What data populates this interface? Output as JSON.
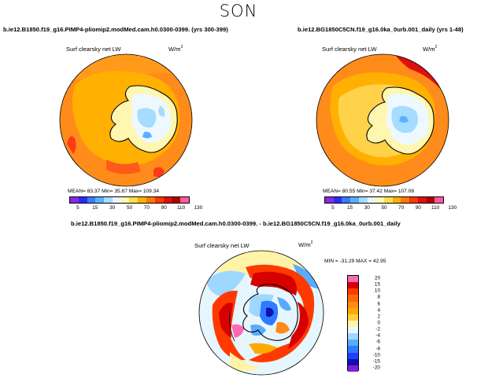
{
  "season": "SON",
  "left_panel": {
    "run_title": "b.ie12.B1850.f19_g16.PIMP4-pliomip2.modMed.cam.h0.0300-0399. (yrs 300-399)",
    "var_title": "Surf clearsky net LW",
    "units_base": "W/m",
    "units_sup": "2",
    "stats": "MEAN=   83.37    Min=   35.87    Max=  109.34"
  },
  "right_panel": {
    "run_title": "b.ie12.BG1850C5CN.f19_g16.0ka_0urb.001_daily (yrs 1-48)",
    "var_title": "Surf clearsky net LW",
    "units_base": "W/m",
    "units_sup": "2",
    "stats": "MEAN=   80.55    Min=   37.42    Max=  107.08"
  },
  "diff_panel": {
    "run_title": "b.ie12.B1850.f19_g16.PIMP4-pliomip2.modMed.cam.h0.0300-0399. - b.ie12.BG1850C5CN.f19_g16.0ka_0urb.001_daily",
    "var_title": "Surf clearsky net LW",
    "units_base": "W/m",
    "units_sup": "2",
    "minmax": "MIN = -31.29  MAX = 42.95"
  },
  "abs_colorbar": {
    "labels": [
      "5",
      "15",
      "30",
      "50",
      "70",
      "90",
      "110",
      "130"
    ],
    "colors": [
      "#8a2be2",
      "#2a2aff",
      "#3a7aff",
      "#5ab0ff",
      "#a6dcff",
      "#eaf6ff",
      "#fff7b0",
      "#ffe04a",
      "#ffb000",
      "#ff7a00",
      "#ff3a00",
      "#e01010",
      "#b00000",
      "#ff5aa0"
    ]
  },
  "diff_colorbar": {
    "labels": [
      "20",
      "15",
      "10",
      "8",
      "6",
      "4",
      "2",
      "0",
      "-2",
      "-4",
      "-6",
      "-8",
      "-10",
      "-15",
      "-20"
    ],
    "colors": [
      "#ff69b4",
      "#d60000",
      "#ff3a00",
      "#ff6a00",
      "#ff8c1a",
      "#ffaa00",
      "#ffd040",
      "#fff3a8",
      "#e6f6ff",
      "#9fd8ff",
      "#58acff",
      "#2f7bff",
      "#2040ff",
      "#1010b0",
      "#7a22d6"
    ]
  },
  "map_colors": {
    "orange": "#ff8c1a",
    "yellow": "#ffd24a",
    "red": "#ff4a1a",
    "ice_white": "#eef8ff",
    "ice_blue": "#a6dcff"
  }
}
